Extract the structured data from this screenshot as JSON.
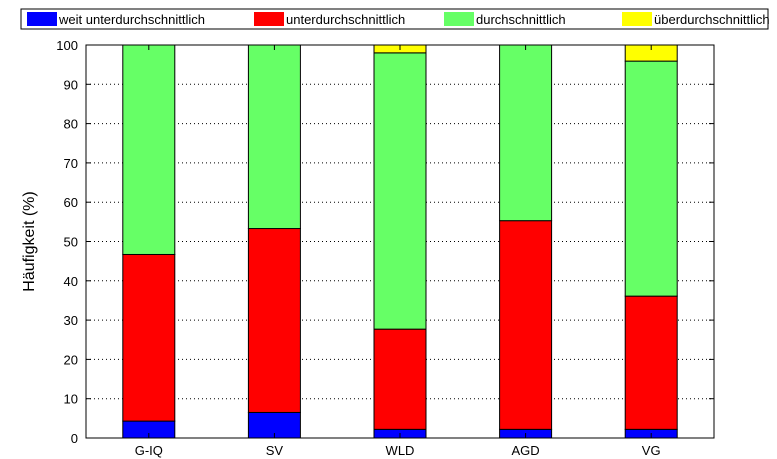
{
  "chart_data": {
    "type": "bar",
    "stacked": true,
    "title": "",
    "xlabel": "",
    "ylabel": "Häufigkeit (%)",
    "ylim": [
      0,
      100
    ],
    "yticks": [
      0,
      10,
      20,
      30,
      40,
      50,
      60,
      70,
      80,
      90,
      100
    ],
    "grid": "y-dotted",
    "legend_position": "top",
    "categories": [
      "G-IQ",
      "SV",
      "WLD",
      "AGD",
      "VG"
    ],
    "series": [
      {
        "name": "weit unterdurchschnittlich",
        "color": "#0000ff",
        "values": [
          4.3,
          6.5,
          2.2,
          2.2,
          2.2
        ]
      },
      {
        "name": "unterdurchschnittlich",
        "color": "#ff0000",
        "values": [
          42.4,
          46.8,
          25.5,
          53.1,
          33.9
        ]
      },
      {
        "name": "durchschnittlich",
        "color": "#66ff66",
        "values": [
          53.3,
          46.7,
          70.3,
          44.7,
          59.8
        ]
      },
      {
        "name": "überdurchschnittlich",
        "color": "#ffff00",
        "values": [
          0,
          0,
          2.0,
          0,
          4.1
        ]
      }
    ]
  }
}
